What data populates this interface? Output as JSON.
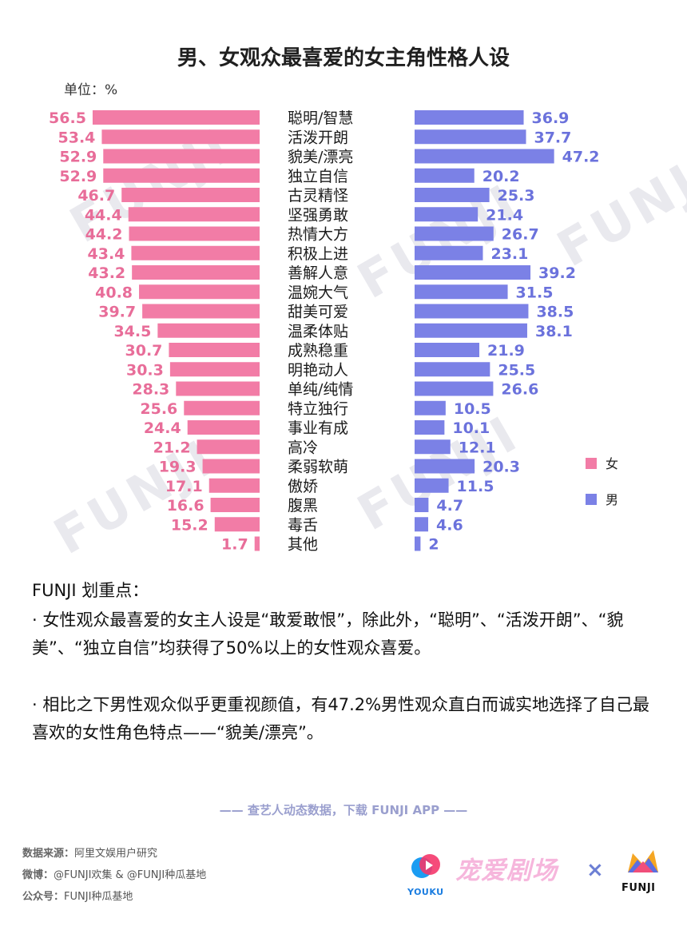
{
  "header": {
    "title": "男、女观众最喜爱的女主角性格人设",
    "unit": "单位：%"
  },
  "colors": {
    "female": "#f27ca6",
    "male": "#7b81e6",
    "female_text": "#e86d99",
    "male_text": "#6b72dc",
    "watermark": "#e9e9ee"
  },
  "chart_data": {
    "type": "bar",
    "orientation": "horizontal-butterfly",
    "title": "男、女观众最喜爱的女主角性格人设",
    "unit": "%",
    "categories": [
      "聪明/智慧",
      "活泼开朗",
      "貌美/漂亮",
      "独立自信",
      "古灵精怪",
      "坚强勇敢",
      "热情大方",
      "积极上进",
      "善解人意",
      "温婉大气",
      "甜美可爱",
      "温柔体贴",
      "成熟稳重",
      "明艳动人",
      "单纯/纯情",
      "特立独行",
      "事业有成",
      "高冷",
      "柔弱软萌",
      "傲娇",
      "腹黑",
      "毒舌",
      "其他"
    ],
    "series": [
      {
        "name": "女",
        "values": [
          "56.5",
          "53.4",
          "52.9",
          "52.9",
          "46.7",
          "44.4",
          "44.2",
          "43.4",
          "43.2",
          "40.8",
          "39.7",
          "34.5",
          "30.7",
          "30.3",
          "28.3",
          "25.6",
          "24.4",
          "21.2",
          "19.3",
          "17.1",
          "16.6",
          "15.2",
          "1.7"
        ]
      },
      {
        "name": "男",
        "values": [
          "36.9",
          "37.7",
          "47.2",
          "20.2",
          "25.3",
          "21.4",
          "26.7",
          "23.1",
          "39.2",
          "31.5",
          "38.5",
          "38.1",
          "21.9",
          "25.5",
          "26.6",
          "10.5",
          "10.1",
          "12.1",
          "20.3",
          "11.5",
          "4.7",
          "4.6",
          "2"
        ]
      }
    ],
    "legend": {
      "position": "right",
      "entries": [
        "女",
        "男"
      ]
    }
  },
  "analysis": {
    "heading": "FUNJI 划重点：",
    "point1": "· 女性观众最喜爱的女主人设是“敢爱敢恨”，除此外，“聪明”、“活泼开朗”、“貌美”、“独立自信”均获得了50%以上的女性观众喜爱。",
    "point2": "· 相比之下男性观众似乎更重视颜值，有47.2%男性观众直白而诚实地选择了自己最喜欢的女性角色特点——“貌美/漂亮”。"
  },
  "cta": "—— 查艺人动态数据，下载 FUNJI APP ——",
  "footer": {
    "source_label": "数据来源：",
    "source": "阿里文娱用户研究",
    "weibo_label": "微博：",
    "weibo": "@FUNJI欢集 & @FUNJI种瓜基地",
    "wechat_label": "公众号：",
    "wechat": "FUNJI种瓜基地"
  },
  "logos": {
    "youku": "YOUKU",
    "theater": "宠爱剧场",
    "times": "×",
    "funji": "FUNJI",
    "watermark": "FUNJI"
  }
}
